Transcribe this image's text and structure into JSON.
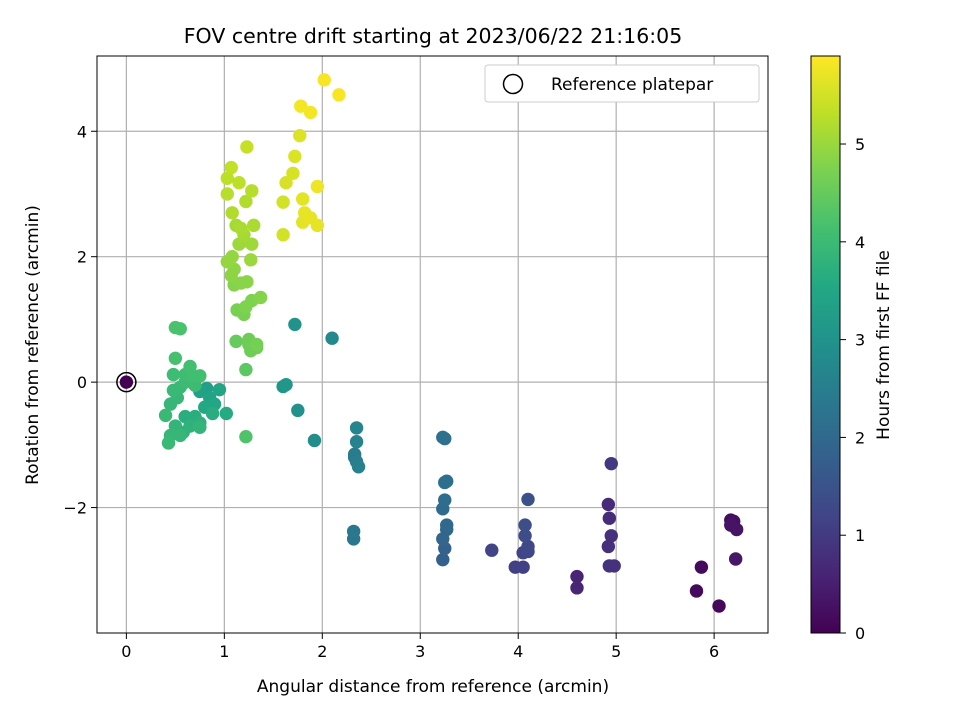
{
  "chart_data": {
    "type": "scatter",
    "title": "FOV centre drift starting at 2023/06/22 21:16:05",
    "xlabel": "Angular distance from reference (arcmin)",
    "ylabel": "Rotation from reference (arcmin)",
    "xlim": [
      -0.3,
      6.55
    ],
    "ylim": [
      -4.0,
      5.2
    ],
    "xticks": [
      0,
      1,
      2,
      3,
      4,
      5,
      6
    ],
    "xtick_labels": [
      "0",
      "1",
      "2",
      "3",
      "4",
      "5",
      "6"
    ],
    "yticks": [
      -2,
      0,
      2,
      4
    ],
    "ytick_labels": [
      "−2",
      "0",
      "2",
      "4"
    ],
    "grid": true,
    "colormap": "viridis",
    "colorbar": {
      "label": "Hours from first FF file",
      "vmin": 0,
      "vmax": 5.9,
      "ticks": [
        0,
        1,
        2,
        3,
        4,
        5
      ],
      "tick_labels": [
        "0",
        "1",
        "2",
        "3",
        "4",
        "5"
      ]
    },
    "legend": {
      "position": "top-right",
      "entries": [
        "Reference platepar"
      ]
    },
    "reference_point": {
      "x": 0,
      "y": 0
    },
    "points": [
      {
        "x": 0.0,
        "y": 0.0,
        "t": 0.0
      },
      {
        "x": 6.05,
        "y": -3.57,
        "t": 0.1
      },
      {
        "x": 5.82,
        "y": -3.33,
        "t": 0.15
      },
      {
        "x": 5.87,
        "y": -2.95,
        "t": 0.15
      },
      {
        "x": 6.17,
        "y": -2.2,
        "t": 0.2
      },
      {
        "x": 6.2,
        "y": -2.22,
        "t": 0.25
      },
      {
        "x": 6.17,
        "y": -2.28,
        "t": 0.3
      },
      {
        "x": 6.23,
        "y": -2.35,
        "t": 0.3
      },
      {
        "x": 6.22,
        "y": -2.82,
        "t": 0.35
      },
      {
        "x": 4.6,
        "y": -3.1,
        "t": 0.6
      },
      {
        "x": 4.6,
        "y": -3.28,
        "t": 0.6
      },
      {
        "x": 4.92,
        "y": -1.95,
        "t": 0.7
      },
      {
        "x": 4.93,
        "y": -2.17,
        "t": 0.75
      },
      {
        "x": 4.95,
        "y": -2.45,
        "t": 0.8
      },
      {
        "x": 4.92,
        "y": -2.62,
        "t": 0.8
      },
      {
        "x": 4.93,
        "y": -2.93,
        "t": 0.85
      },
      {
        "x": 4.98,
        "y": -2.93,
        "t": 0.85
      },
      {
        "x": 4.95,
        "y": -1.3,
        "t": 0.95
      },
      {
        "x": 3.97,
        "y": -2.95,
        "t": 1.1
      },
      {
        "x": 4.05,
        "y": -2.95,
        "t": 1.1
      },
      {
        "x": 3.73,
        "y": -2.68,
        "t": 1.2
      },
      {
        "x": 4.05,
        "y": -2.72,
        "t": 1.2
      },
      {
        "x": 4.1,
        "y": -2.7,
        "t": 1.25
      },
      {
        "x": 4.1,
        "y": -2.62,
        "t": 1.3
      },
      {
        "x": 4.07,
        "y": -2.45,
        "t": 1.35
      },
      {
        "x": 4.07,
        "y": -2.28,
        "t": 1.4
      },
      {
        "x": 4.1,
        "y": -1.87,
        "t": 1.45
      },
      {
        "x": 3.23,
        "y": -2.83,
        "t": 1.8
      },
      {
        "x": 3.25,
        "y": -2.65,
        "t": 1.85
      },
      {
        "x": 3.23,
        "y": -2.5,
        "t": 1.9
      },
      {
        "x": 3.27,
        "y": -2.35,
        "t": 1.95
      },
      {
        "x": 3.27,
        "y": -2.28,
        "t": 2.0
      },
      {
        "x": 3.23,
        "y": -2.02,
        "t": 2.05
      },
      {
        "x": 3.25,
        "y": -1.88,
        "t": 2.1
      },
      {
        "x": 3.27,
        "y": -1.58,
        "t": 2.15
      },
      {
        "x": 3.25,
        "y": -1.6,
        "t": 2.15
      },
      {
        "x": 3.23,
        "y": -0.88,
        "t": 2.2
      },
      {
        "x": 3.25,
        "y": -0.9,
        "t": 2.2
      },
      {
        "x": 2.32,
        "y": -2.5,
        "t": 2.3
      },
      {
        "x": 2.32,
        "y": -2.38,
        "t": 2.35
      },
      {
        "x": 2.33,
        "y": -1.2,
        "t": 2.4
      },
      {
        "x": 2.33,
        "y": -1.15,
        "t": 2.45
      },
      {
        "x": 2.35,
        "y": -1.27,
        "t": 2.5
      },
      {
        "x": 2.37,
        "y": -1.35,
        "t": 2.55
      },
      {
        "x": 2.35,
        "y": -0.95,
        "t": 2.6
      },
      {
        "x": 2.35,
        "y": -0.73,
        "t": 2.65
      },
      {
        "x": 2.1,
        "y": 0.7,
        "t": 2.75
      },
      {
        "x": 1.92,
        "y": -0.93,
        "t": 2.85
      },
      {
        "x": 1.75,
        "y": -0.45,
        "t": 2.95
      },
      {
        "x": 1.72,
        "y": 0.92,
        "t": 3.0
      },
      {
        "x": 1.6,
        "y": -0.07,
        "t": 3.05
      },
      {
        "x": 1.63,
        "y": -0.04,
        "t": 3.1
      },
      {
        "x": 0.82,
        "y": -0.1,
        "t": 3.3
      },
      {
        "x": 0.75,
        "y": -0.15,
        "t": 3.35
      },
      {
        "x": 0.85,
        "y": -0.25,
        "t": 3.4
      },
      {
        "x": 0.95,
        "y": -0.12,
        "t": 3.45
      },
      {
        "x": 0.9,
        "y": -0.35,
        "t": 3.5
      },
      {
        "x": 0.8,
        "y": -0.4,
        "t": 3.55
      },
      {
        "x": 1.02,
        "y": -0.5,
        "t": 3.6
      },
      {
        "x": 0.88,
        "y": -0.5,
        "t": 3.65
      },
      {
        "x": 0.7,
        "y": -0.55,
        "t": 3.7
      },
      {
        "x": 0.6,
        "y": -0.55,
        "t": 3.7
      },
      {
        "x": 0.75,
        "y": -0.65,
        "t": 3.75
      },
      {
        "x": 0.65,
        "y": -0.7,
        "t": 3.8
      },
      {
        "x": 0.75,
        "y": -0.72,
        "t": 3.85
      },
      {
        "x": 0.58,
        "y": -0.8,
        "t": 3.8
      },
      {
        "x": 0.5,
        "y": -0.7,
        "t": 3.85
      },
      {
        "x": 0.55,
        "y": -0.85,
        "t": 3.9
      },
      {
        "x": 0.45,
        "y": -0.85,
        "t": 3.9
      },
      {
        "x": 0.43,
        "y": -0.97,
        "t": 3.95
      },
      {
        "x": 0.45,
        "y": -0.35,
        "t": 3.9
      },
      {
        "x": 0.4,
        "y": -0.53,
        "t": 3.95
      },
      {
        "x": 0.52,
        "y": -0.25,
        "t": 3.9
      },
      {
        "x": 0.48,
        "y": -0.13,
        "t": 3.95
      },
      {
        "x": 0.55,
        "y": -0.08,
        "t": 3.95
      },
      {
        "x": 0.6,
        "y": 0.0,
        "t": 4.0
      },
      {
        "x": 0.65,
        "y": 0.05,
        "t": 4.0
      },
      {
        "x": 0.7,
        "y": -0.05,
        "t": 4.0
      },
      {
        "x": 0.48,
        "y": 0.12,
        "t": 4.05
      },
      {
        "x": 0.6,
        "y": 0.12,
        "t": 4.05
      },
      {
        "x": 0.68,
        "y": 0.1,
        "t": 4.1
      },
      {
        "x": 0.75,
        "y": 0.1,
        "t": 4.1
      },
      {
        "x": 0.65,
        "y": 0.25,
        "t": 4.1
      },
      {
        "x": 0.5,
        "y": 0.38,
        "t": 4.15
      },
      {
        "x": 0.5,
        "y": 0.87,
        "t": 4.2
      },
      {
        "x": 0.55,
        "y": 0.85,
        "t": 4.2
      },
      {
        "x": 1.22,
        "y": -0.87,
        "t": 4.25
      },
      {
        "x": 1.22,
        "y": 0.2,
        "t": 4.4
      },
      {
        "x": 1.12,
        "y": 0.65,
        "t": 4.5
      },
      {
        "x": 1.25,
        "y": 0.6,
        "t": 4.55
      },
      {
        "x": 1.3,
        "y": 0.55,
        "t": 4.55
      },
      {
        "x": 1.27,
        "y": 0.5,
        "t": 4.6
      },
      {
        "x": 1.33,
        "y": 0.55,
        "t": 4.6
      },
      {
        "x": 1.25,
        "y": 0.68,
        "t": 4.6
      },
      {
        "x": 1.33,
        "y": 0.6,
        "t": 4.65
      },
      {
        "x": 1.13,
        "y": 1.15,
        "t": 4.7
      },
      {
        "x": 1.2,
        "y": 1.08,
        "t": 4.7
      },
      {
        "x": 1.22,
        "y": 1.2,
        "t": 4.75
      },
      {
        "x": 1.28,
        "y": 1.3,
        "t": 4.75
      },
      {
        "x": 1.37,
        "y": 1.35,
        "t": 4.8
      },
      {
        "x": 1.1,
        "y": 1.55,
        "t": 4.8
      },
      {
        "x": 1.17,
        "y": 1.58,
        "t": 4.85
      },
      {
        "x": 1.23,
        "y": 1.6,
        "t": 4.85
      },
      {
        "x": 1.07,
        "y": 1.7,
        "t": 4.9
      },
      {
        "x": 1.1,
        "y": 1.8,
        "t": 4.9
      },
      {
        "x": 1.03,
        "y": 1.92,
        "t": 4.95
      },
      {
        "x": 1.08,
        "y": 2.0,
        "t": 4.95
      },
      {
        "x": 1.27,
        "y": 1.95,
        "t": 5.0
      },
      {
        "x": 1.15,
        "y": 2.2,
        "t": 5.0
      },
      {
        "x": 1.2,
        "y": 2.25,
        "t": 5.05
      },
      {
        "x": 1.28,
        "y": 2.2,
        "t": 5.05
      },
      {
        "x": 1.2,
        "y": 2.35,
        "t": 5.1
      },
      {
        "x": 1.12,
        "y": 2.5,
        "t": 5.1
      },
      {
        "x": 1.17,
        "y": 2.45,
        "t": 5.15
      },
      {
        "x": 1.3,
        "y": 2.5,
        "t": 5.15
      },
      {
        "x": 1.08,
        "y": 2.7,
        "t": 5.2
      },
      {
        "x": 1.22,
        "y": 2.88,
        "t": 5.2
      },
      {
        "x": 1.03,
        "y": 3.0,
        "t": 5.25
      },
      {
        "x": 1.28,
        "y": 3.05,
        "t": 5.25
      },
      {
        "x": 1.15,
        "y": 3.18,
        "t": 5.3
      },
      {
        "x": 1.03,
        "y": 3.25,
        "t": 5.3
      },
      {
        "x": 1.07,
        "y": 3.42,
        "t": 5.35
      },
      {
        "x": 1.23,
        "y": 3.75,
        "t": 5.4
      },
      {
        "x": 1.6,
        "y": 2.35,
        "t": 5.5
      },
      {
        "x": 1.6,
        "y": 2.87,
        "t": 5.5
      },
      {
        "x": 1.63,
        "y": 3.18,
        "t": 5.55
      },
      {
        "x": 1.7,
        "y": 3.33,
        "t": 5.55
      },
      {
        "x": 1.72,
        "y": 3.6,
        "t": 5.6
      },
      {
        "x": 1.77,
        "y": 3.93,
        "t": 5.6
      },
      {
        "x": 1.8,
        "y": 2.55,
        "t": 5.65
      },
      {
        "x": 1.8,
        "y": 2.92,
        "t": 5.65
      },
      {
        "x": 1.82,
        "y": 2.7,
        "t": 5.7
      },
      {
        "x": 1.88,
        "y": 2.62,
        "t": 5.7
      },
      {
        "x": 1.95,
        "y": 2.5,
        "t": 5.7
      },
      {
        "x": 1.95,
        "y": 3.12,
        "t": 5.75
      },
      {
        "x": 1.78,
        "y": 4.4,
        "t": 5.8
      },
      {
        "x": 1.88,
        "y": 4.3,
        "t": 5.8
      },
      {
        "x": 2.02,
        "y": 4.82,
        "t": 5.85
      },
      {
        "x": 2.17,
        "y": 4.58,
        "t": 5.85
      }
    ]
  }
}
